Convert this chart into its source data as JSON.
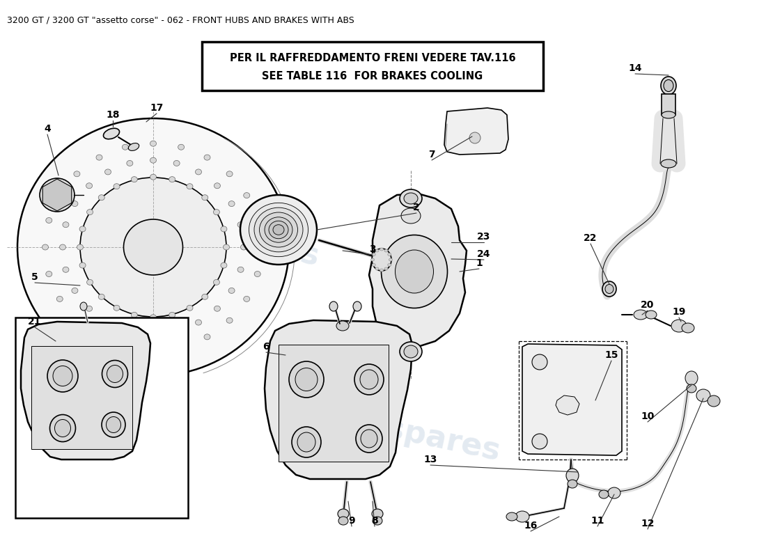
{
  "title": "3200 GT / 3200 GT \"assetto corse\" - 062 - FRONT HUBS AND BRAKES WITH ABS",
  "notice_line1": "PER IL RAFFREDDAMENTO FRENI VEDERE TAV.116",
  "notice_line2": "SEE TABLE 116  FOR BRAKES COOLING",
  "background_color": "#ffffff",
  "title_fontsize": 9,
  "watermark_text": "eurospares",
  "watermark_color": "#b0c4d8",
  "watermark_alpha": 0.35,
  "fig_w": 11.0,
  "fig_h": 8.0,
  "dpi": 100
}
